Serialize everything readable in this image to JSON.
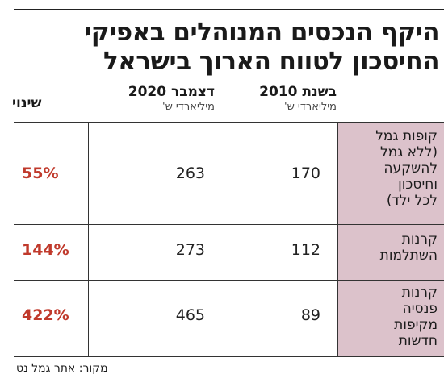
{
  "title_line1": "היקף הנכסים המנוהלים באפיקי",
  "title_line2": "החיסכון לטווח הארוך בישראל",
  "columns": {
    "col_2010_title": "בשנת 2010",
    "col_2010_unit": "מיליארדי ש'",
    "col_2020_title": "דצמבר 2020",
    "col_2020_unit": "מיליארדי ש'",
    "change_title": "שינוי"
  },
  "source": "מקור: אתר גמל נט",
  "chart_data": {
    "type": "table",
    "title": "היקף הנכסים המנוהלים באפיקי החיסכון לטווח הארוך בישראל",
    "column_headers": [
      "בשנת 2010 מיליארדי ש'",
      "דצמבר 2020 מיליארדי ש'",
      "שינוי"
    ],
    "rows": [
      {
        "label_lines": [
          "קופות גמל",
          "(ללא גמל",
          "להשקעה",
          "וחיסכון",
          "לכל ילד)"
        ],
        "value_2010": 170,
        "value_2020": 263,
        "change": "55%"
      },
      {
        "label_lines": [
          "קרנות",
          "השתלמות"
        ],
        "value_2010": 112,
        "value_2020": 273,
        "change": "144%"
      },
      {
        "label_lines": [
          "קרנות",
          "פנסיה",
          "מקיפות",
          "חדשות"
        ],
        "value_2010": 89,
        "value_2020": 465,
        "change": "422%"
      }
    ]
  }
}
